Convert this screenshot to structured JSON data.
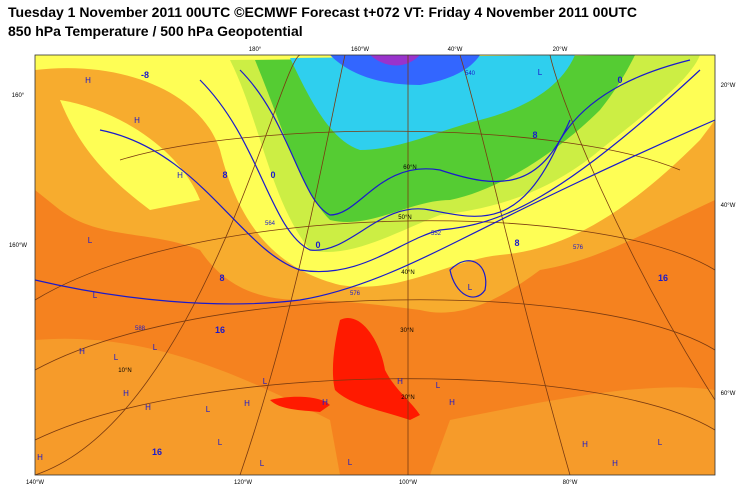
{
  "header": {
    "title": "Tuesday 1 November 2011 00UTC ©ECMWF Forecast t+072 VT: Friday 4 November 2011 00UTC",
    "subtitle": "850 hPa Temperature / 500 hPa Geopotential"
  },
  "graticule_labels": [
    "140°W",
    "120°W",
    "100°W",
    "80°W",
    "160°",
    "160°W",
    "180°",
    "160°W",
    "40°W",
    "20°W",
    "20°W",
    "40°W",
    "60°W",
    "60°N",
    "50°N",
    "40°N",
    "30°N",
    "20°N",
    "10°N"
  ],
  "temperature_labels": [
    "16",
    "16",
    "16",
    "8",
    "8",
    "8",
    "8",
    "0",
    "0",
    "0",
    "-8"
  ],
  "geopotential_labels": [
    "576",
    "576",
    "552",
    "564",
    "540",
    "588"
  ],
  "pressure_centers": [
    "H",
    "H",
    "H",
    "L",
    "L",
    "H",
    "L",
    "L",
    "H",
    "H",
    "L",
    "H",
    "L",
    "H",
    "L",
    "L",
    "H",
    "L",
    "H",
    "L",
    "L",
    "H",
    "L",
    "H",
    "L",
    "H"
  ]
}
